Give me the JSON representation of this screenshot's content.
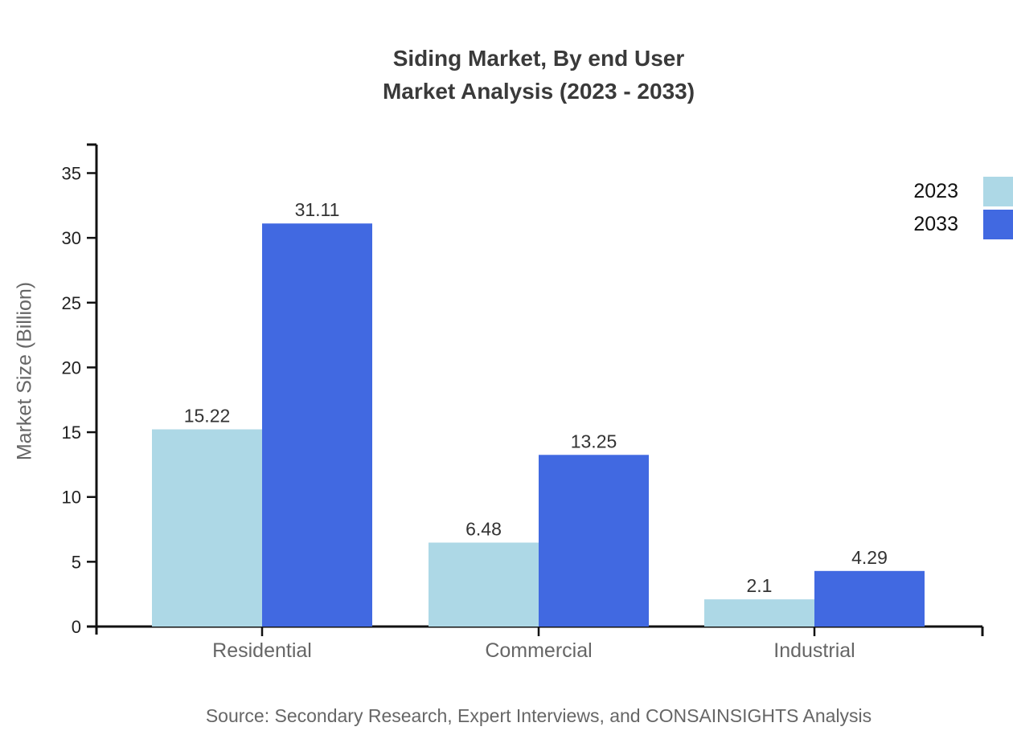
{
  "title": {
    "line1": "Siding Market, By end User",
    "line2": "Market Analysis (2023 - 2033)"
  },
  "legend": [
    {
      "label": "2023",
      "color": "#ADD8E6"
    },
    {
      "label": "2033",
      "color": "#4169E1"
    }
  ],
  "source": "Source: Secondary Research, Expert Interviews, and CONSAINSIGHTS Analysis",
  "chart_data": {
    "type": "bar",
    "title": "Siding Market, By end User Market Analysis (2023 - 2033)",
    "categories": [
      "Residential",
      "Commercial",
      "Industrial"
    ],
    "series": [
      {
        "name": "2023",
        "color": "#ADD8E6",
        "values": [
          15.22,
          6.48,
          2.1
        ]
      },
      {
        "name": "2033",
        "color": "#4169E1",
        "values": [
          31.11,
          13.25,
          4.29
        ]
      }
    ],
    "xlabel": "",
    "ylabel": "Market Size (Billion)",
    "ylim": [
      0,
      37.2
    ],
    "yticks": [
      0,
      5,
      10,
      15,
      20,
      25,
      30,
      35
    ],
    "grid": false,
    "legend_position": "top-right",
    "bar_labels": true
  },
  "colors": {
    "axis": "#111111",
    "title_text": "#3a3a3a",
    "category_text": "#666666",
    "tick_text": "#222222",
    "value_text": "#333333"
  }
}
